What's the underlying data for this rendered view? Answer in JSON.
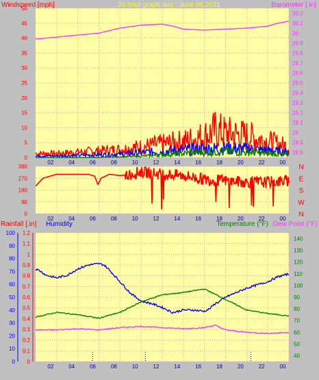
{
  "page": {
    "background": "#c0c0c0",
    "plot_background": "#ffffa8",
    "grid_color": "#ff9a9a"
  },
  "chart_data": [
    {
      "id": "wind_baro",
      "type": "line",
      "title": "24 hour graph day : June 06 2021",
      "left_label": "Windspeed [mph]",
      "right_label": "Barometer [.in]",
      "x_ticks": [
        "02",
        "04",
        "06",
        "08",
        "10",
        "12",
        "14",
        "16",
        "18",
        "20",
        "22",
        "00"
      ],
      "xlim": [
        0,
        24
      ],
      "ylim_left": [
        0,
        50
      ],
      "left_ticks": [
        "0",
        "5",
        "10",
        "15",
        "20",
        "25",
        "30",
        "35",
        "40",
        "45",
        "50"
      ],
      "ylim_right": [
        28.75,
        30.25
      ],
      "right_ticks": [
        "28.8",
        "28.9",
        "29",
        "29.1",
        "29.2",
        "29.3",
        "29.4",
        "29.5",
        "29.6",
        "29.7",
        "29.8",
        "29.9",
        "30",
        "30.1",
        "30.2"
      ],
      "grid": true,
      "series": [
        {
          "axis": "right",
          "color": "#ff33ff",
          "x": [
            0,
            2,
            4,
            6,
            8,
            10,
            12,
            13,
            14,
            16,
            18,
            20,
            22,
            23,
            24
          ],
          "y": [
            29.94,
            29.96,
            29.98,
            30.0,
            30.05,
            30.08,
            30.09,
            30.07,
            30.04,
            30.03,
            30.04,
            30.05,
            30.07,
            30.1,
            30.12
          ]
        },
        {
          "axis": "left",
          "color": "#ff0000",
          "noisy": true,
          "x": [
            0,
            2,
            4,
            6,
            8,
            10,
            12,
            14,
            16,
            17,
            18,
            20,
            22,
            24
          ],
          "y": [
            1.5,
            1.5,
            2,
            2.5,
            3,
            4,
            5,
            6,
            8,
            10,
            9,
            8,
            6,
            4
          ]
        },
        {
          "axis": "left",
          "color": "#0000ff",
          "noisy": true,
          "x": [
            0,
            2,
            4,
            6,
            8,
            10,
            12,
            14,
            16,
            18,
            20,
            22,
            24
          ],
          "y": [
            0.5,
            0.6,
            0.8,
            1,
            1.2,
            1.8,
            2.3,
            2.8,
            3.2,
            3.4,
            3.2,
            2.5,
            2
          ]
        },
        {
          "axis": "left",
          "color": "#008000",
          "noisy": true,
          "x": [
            0,
            6,
            10,
            12,
            14,
            16,
            18,
            20,
            22,
            24
          ],
          "y": [
            0,
            0,
            0.5,
            1,
            1.5,
            2,
            2.2,
            2,
            1.5,
            1
          ]
        }
      ]
    },
    {
      "id": "wind_dir",
      "type": "line",
      "x_ticks": [
        "02",
        "04",
        "06",
        "08",
        "10",
        "12",
        "14",
        "16",
        "18",
        "20",
        "22",
        "00"
      ],
      "xlim": [
        0,
        24
      ],
      "ylim_left": [
        0,
        360
      ],
      "left_ticks": [
        "0",
        "90",
        "180",
        "270",
        "360"
      ],
      "right_labels": [
        "N",
        "W",
        "S",
        "E",
        "N"
      ],
      "grid": true,
      "series": [
        {
          "axis": "left",
          "color": "#ff0000",
          "x": [
            0,
            0.7,
            2,
            4,
            5,
            5.6,
            5.9,
            6.2,
            7,
            8,
            9,
            10,
            11,
            12,
            14,
            16,
            18,
            20,
            22,
            24
          ],
          "y": [
            210,
            270,
            300,
            300,
            300,
            285,
            220,
            270,
            300,
            290,
            300,
            320,
            310,
            300,
            290,
            260,
            250,
            240,
            240,
            250
          ]
        }
      ]
    },
    {
      "id": "temp_hum",
      "type": "line",
      "left_label": "Rainfall [.in]",
      "left2_label": "Humidity",
      "right_label": "Temperature (°F)",
      "right2_label": "Dew Point (°F)",
      "x_ticks": [
        "02",
        "04",
        "06",
        "08",
        "10",
        "12",
        "14",
        "16",
        "18",
        "20",
        "22",
        "00"
      ],
      "xlim": [
        0,
        24
      ],
      "rain_ticks": [
        "0",
        "0.1",
        "0.2",
        "0.3",
        "0.4",
        "0.5",
        "0.6",
        "0.7",
        "0.8",
        "0.9",
        "1",
        "1.1",
        "1.2"
      ],
      "ylim_rain": [
        0,
        1.2
      ],
      "humidity_ticks": [
        "0",
        "10",
        "20",
        "30",
        "40",
        "50",
        "60",
        "70",
        "80",
        "90",
        "100"
      ],
      "ylim_humidity": [
        0,
        100
      ],
      "temp_ticks": [
        "40",
        "50",
        "60",
        "70",
        "80",
        "90",
        "100",
        "110",
        "120",
        "130",
        "140"
      ],
      "ylim_temp": [
        35,
        145
      ],
      "grid": true,
      "series": [
        {
          "axis": "humidity",
          "color": "#0000ff",
          "x": [
            0,
            0.5,
            1,
            2,
            3,
            4,
            5,
            6,
            6.5,
            7,
            8,
            9,
            10,
            11,
            12,
            13,
            14,
            15,
            16,
            16.5,
            17,
            17.3,
            18,
            20,
            22,
            23,
            24
          ],
          "y": [
            72,
            70,
            67,
            65,
            67,
            72,
            75,
            76,
            75,
            71,
            62,
            53,
            47,
            45,
            42,
            38,
            40,
            40,
            39,
            41,
            45,
            46,
            50,
            57,
            62,
            66,
            68
          ]
        },
        {
          "axis": "temp",
          "color": "#008000",
          "x": [
            0,
            2,
            4,
            6,
            8,
            10,
            12,
            14,
            16,
            18,
            20,
            22,
            24
          ],
          "y": [
            73,
            77,
            75,
            72,
            77,
            86,
            92,
            94,
            97,
            88,
            79,
            76,
            74
          ]
        },
        {
          "axis": "temp",
          "color": "#ff33ff",
          "x": [
            0,
            2,
            4,
            6,
            8,
            10,
            12,
            14,
            16,
            17,
            18,
            20,
            22,
            24
          ],
          "y": [
            62,
            62,
            63,
            62,
            64,
            65,
            64,
            63,
            64,
            66,
            62,
            60,
            59,
            60
          ]
        }
      ],
      "rain_markers_x": [
        5.4,
        10.4,
        20.4
      ]
    }
  ]
}
